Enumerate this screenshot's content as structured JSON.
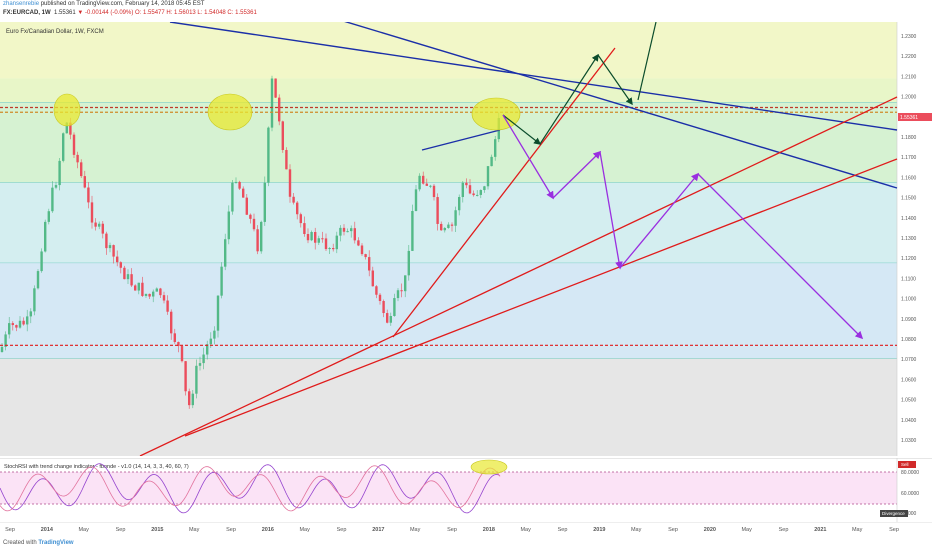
{
  "header": {
    "publisher": "zhansenrebie",
    "published_text": " published on TradingView.com, February 14, 2018 05:45 EST",
    "symbol": "FX:EURCAD, 1W",
    "last": "1.55361",
    "change": "▼ -0.00144 (-0.09%)",
    "ohlc": "O: 1.55477  H: 1.56013  L: 1.54048  C: 1.55361"
  },
  "chart_title": "Euro Fx/Canadian Dollar, 1W, FXCM",
  "indicator_title": "StochRSI with trend change indicator - fbonde - v1.0 (14, 14, 3, 3, 40, 60, 7)",
  "footer": {
    "copyright": "Created with ",
    "brand": "TradingView"
  },
  "colors": {
    "bull": "#53b987",
    "bear": "#eb4d5c",
    "blue_line": "#1b2fa8",
    "red_line": "#e01b1b",
    "purple": "#9a2fe0",
    "green_arrow": "#0c4d2c",
    "ellipse": "#e8e830",
    "stoch_k": "#9646cf",
    "stoch_d": "#e2739d"
  },
  "chart_data": {
    "type": "candlestick",
    "symbol": "EURCAD",
    "interval": "1W",
    "y_ticks": [
      "1.2300",
      "1.2200",
      "1.2100",
      "1.2000",
      "1.1900",
      "1.1800",
      "1.1700",
      "1.1600",
      "1.1500",
      "1.1400",
      "1.1300",
      "1.1200",
      "1.1100",
      "1.1000",
      "1.0900",
      "1.0800",
      "1.0700",
      "1.0600",
      "1.0500",
      "1.0400",
      "1.0300"
    ],
    "x_ticks": [
      "Sep",
      "2014",
      "May",
      "Sep",
      "2015",
      "May",
      "Sep",
      "2016",
      "May",
      "Sep",
      "2017",
      "May",
      "Sep",
      "2018",
      "May",
      "Sep",
      "2019",
      "May",
      "Sep",
      "2020",
      "May",
      "Sep",
      "2021",
      "May",
      "Sep"
    ],
    "current_price": "1.55361",
    "fib_bands": [
      {
        "from": 0.0,
        "to": 0.13,
        "color": "#f2f7c8"
      },
      {
        "from": 0.13,
        "to": 0.185,
        "color": "#e8f6c8"
      },
      {
        "from": 0.185,
        "to": 0.37,
        "color": "#d6f2d2"
      },
      {
        "from": 0.37,
        "to": 0.555,
        "color": "#d4eef0"
      },
      {
        "from": 0.555,
        "to": 0.775,
        "color": "#d5e8f5"
      },
      {
        "from": 0.775,
        "to": 1.0,
        "color": "#e6e6e6"
      }
    ],
    "horizontal_levels": [
      {
        "y_frac": 0.197,
        "style": "dashed",
        "color": "#c0392b"
      },
      {
        "y_frac": 0.208,
        "style": "dashed",
        "color": "#d08a2a"
      },
      {
        "y_frac": 0.745,
        "style": "dashed",
        "color": "#e01b1b"
      }
    ],
    "stoch_levels": [
      "80.0000",
      "60.0000",
      "0.0000"
    ],
    "legend_tags": {
      "sell": "Sell",
      "divergence": "Divergence"
    }
  }
}
